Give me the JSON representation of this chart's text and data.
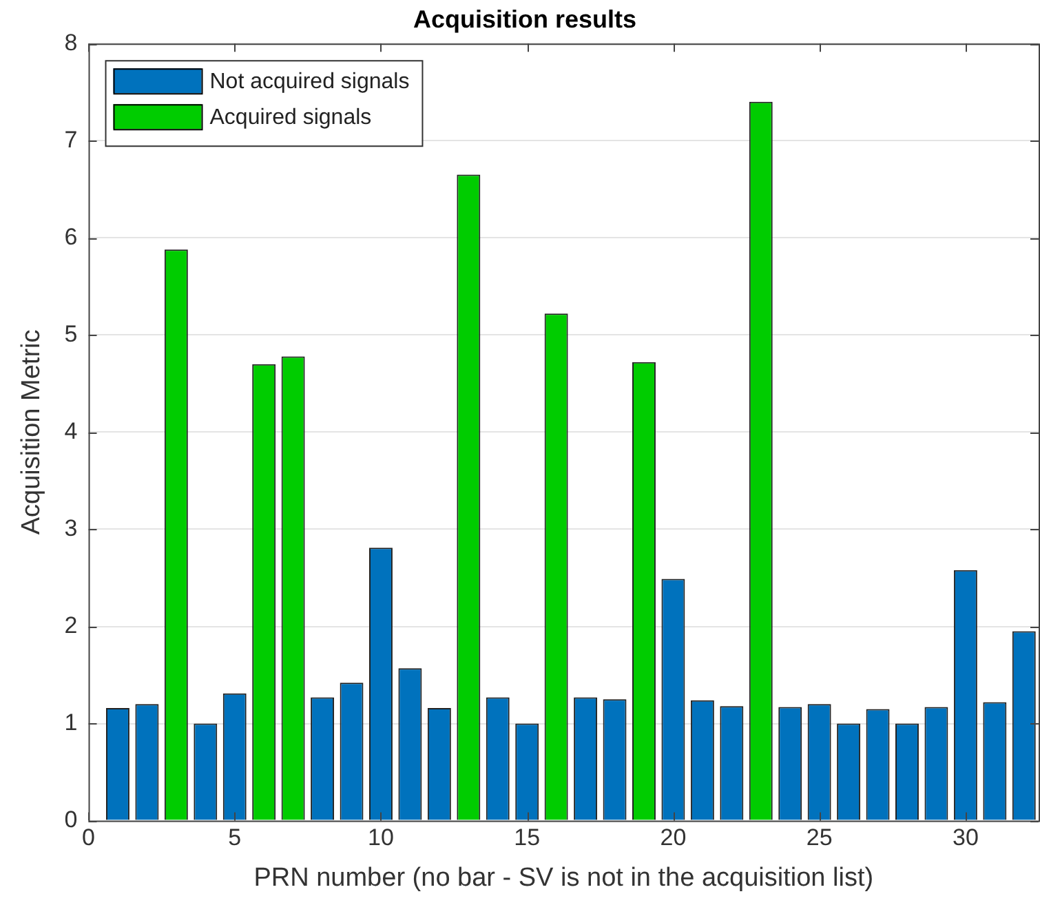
{
  "chart_data": {
    "type": "bar",
    "title": "Acquisition results",
    "xlabel": "PRN number (no bar - SV is not in the acquisition list)",
    "ylabel": "Acquisition Metric",
    "x": [
      1,
      2,
      3,
      4,
      5,
      6,
      7,
      8,
      9,
      10,
      11,
      12,
      13,
      14,
      15,
      16,
      17,
      18,
      19,
      20,
      21,
      22,
      23,
      24,
      25,
      26,
      27,
      28,
      29,
      30,
      31,
      32
    ],
    "series": [
      {
        "name": "Not acquired signals",
        "color": "#0072bd",
        "values": [
          1.16,
          1.2,
          null,
          1.0,
          1.31,
          null,
          null,
          1.27,
          1.42,
          2.81,
          1.57,
          1.16,
          null,
          1.27,
          1.0,
          null,
          1.27,
          1.25,
          null,
          2.49,
          1.24,
          1.18,
          null,
          1.17,
          1.2,
          1.0,
          1.15,
          1.0,
          1.17,
          2.58,
          1.22,
          1.95
        ]
      },
      {
        "name": "Acquired signals",
        "color": "#00cc00",
        "values": [
          null,
          null,
          5.88,
          null,
          null,
          4.7,
          4.78,
          null,
          null,
          null,
          null,
          null,
          6.65,
          null,
          null,
          5.22,
          null,
          null,
          4.72,
          null,
          null,
          null,
          7.4,
          null,
          null,
          null,
          null,
          null,
          null,
          null,
          null,
          null
        ]
      }
    ],
    "xlim": [
      0,
      32.5
    ],
    "xticks": [
      0,
      5,
      10,
      15,
      20,
      25,
      30
    ],
    "ylim": [
      0,
      8
    ],
    "yticks": [
      0,
      1,
      2,
      3,
      4,
      5,
      6,
      7,
      8
    ],
    "grid": "y",
    "legend": "top left"
  }
}
